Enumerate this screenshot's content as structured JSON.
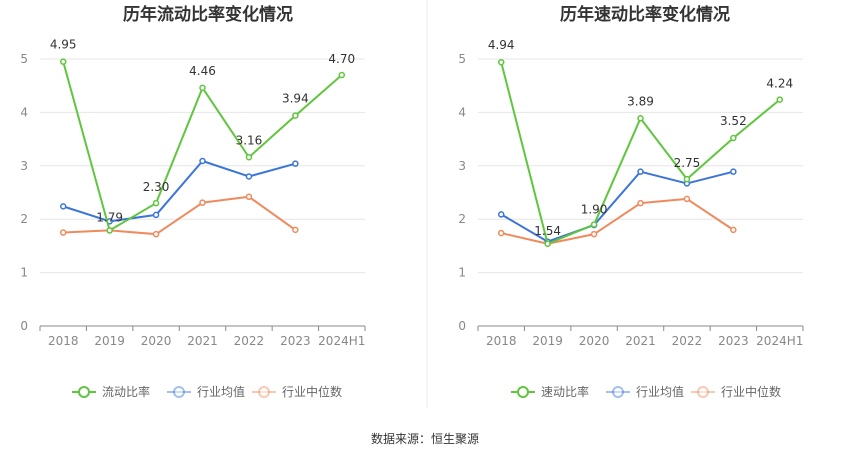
{
  "source_label": "数据来源：恒生聚源",
  "chart_data": [
    {
      "type": "line",
      "title": "历年流动比率变化情况",
      "categories": [
        "2018",
        "2019",
        "2020",
        "2021",
        "2022",
        "2023",
        "2024H1"
      ],
      "ylim": [
        0,
        5
      ],
      "yticks": [
        "0",
        "1",
        "2",
        "3",
        "4",
        "5"
      ],
      "grid": true,
      "legend_position": "bottom",
      "series": [
        {
          "name": "流动比率",
          "color": "#5fc63d",
          "values": [
            4.95,
            1.79,
            2.3,
            4.46,
            3.16,
            3.94,
            4.7
          ],
          "labels": [
            "4.95",
            "1.79",
            "2.30",
            "4.46",
            "3.16",
            "3.94",
            "4.70"
          ]
        },
        {
          "name": "行业均值",
          "color": "#3b75d9",
          "values": [
            2.24,
            1.96,
            2.08,
            3.09,
            2.8,
            3.04,
            null
          ]
        },
        {
          "name": "行业中位数",
          "color": "#f08a5d",
          "values": [
            1.75,
            1.79,
            1.72,
            2.31,
            2.42,
            1.8,
            null
          ]
        }
      ]
    },
    {
      "type": "line",
      "title": "历年速动比率变化情况",
      "categories": [
        "2018",
        "2019",
        "2020",
        "2021",
        "2022",
        "2023",
        "2024H1"
      ],
      "ylim": [
        0,
        5
      ],
      "yticks": [
        "0",
        "1",
        "2",
        "3",
        "4",
        "5"
      ],
      "grid": true,
      "legend_position": "bottom",
      "series": [
        {
          "name": "速动比率",
          "color": "#5fc63d",
          "values": [
            4.94,
            1.54,
            1.9,
            3.89,
            2.75,
            3.52,
            4.24
          ],
          "labels": [
            "4.94",
            "1.54",
            "1.90",
            "3.89",
            "2.75",
            "3.52",
            "4.24"
          ]
        },
        {
          "name": "行业均值",
          "color": "#3b75d9",
          "values": [
            2.09,
            1.58,
            1.89,
            2.89,
            2.67,
            2.89,
            null
          ]
        },
        {
          "name": "行业中位数",
          "color": "#f08a5d",
          "values": [
            1.74,
            1.54,
            1.72,
            2.3,
            2.38,
            1.8,
            null
          ]
        }
      ]
    }
  ]
}
